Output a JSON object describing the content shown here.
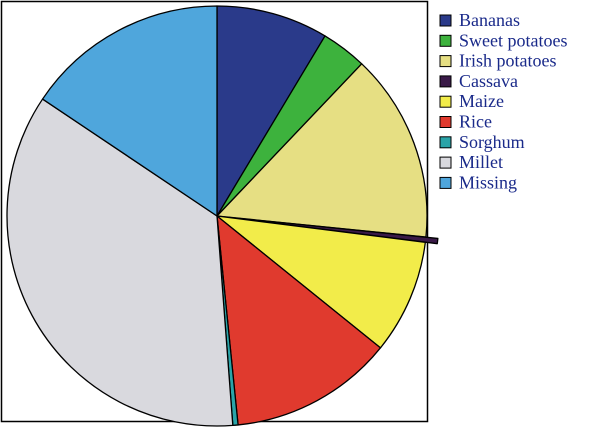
{
  "chart_data": {
    "type": "pie",
    "title": "",
    "legend_position": "right",
    "labels": [
      "Bananas",
      "Sweet potatoes",
      "Irish potatoes",
      "Cassava",
      "Maize",
      "Rice",
      "Sorghum",
      "Millet",
      "Missing"
    ],
    "values": [
      8.6,
      3.5,
      14.5,
      0.4,
      8.8,
      12.6,
      0.4,
      35.6,
      15.6
    ],
    "unit": "percent",
    "colors": [
      "#2a3a8a",
      "#3db23d",
      "#e6df83",
      "#3a1a48",
      "#f2ec4a",
      "#e03a2e",
      "#2aa4a8",
      "#d9d9de",
      "#4fa6dc"
    ],
    "exploded": [
      "Cassava"
    ],
    "start_angle_deg": 90,
    "direction": "clockwise"
  }
}
